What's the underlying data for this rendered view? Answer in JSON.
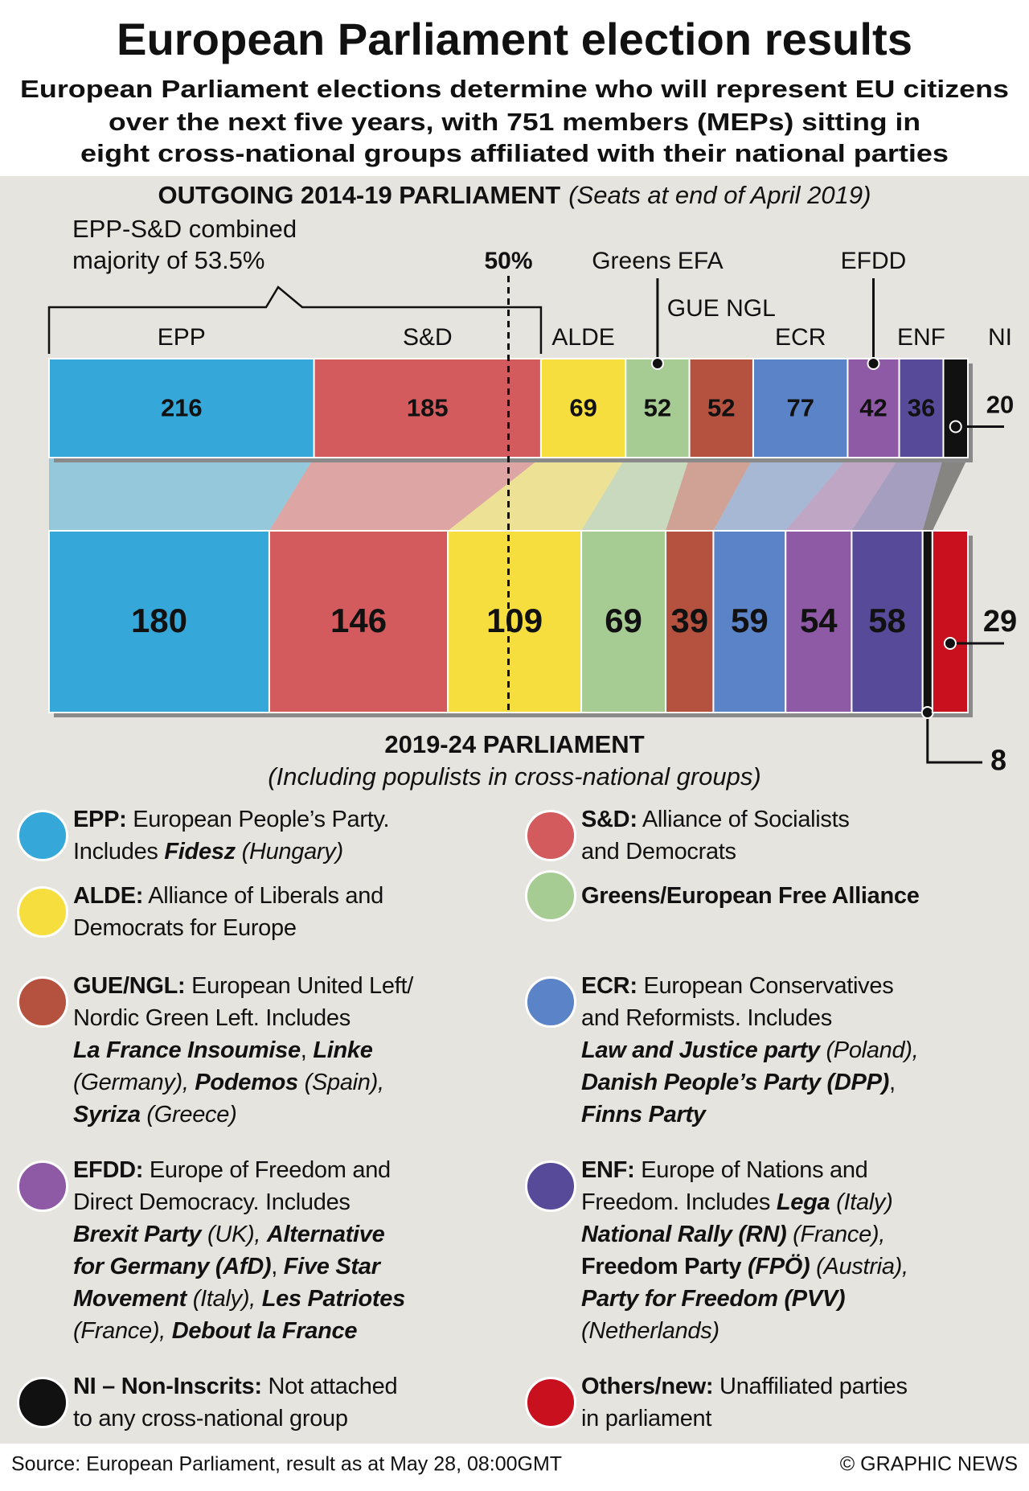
{
  "chart_data": {
    "type": "stacked_bar_comparison",
    "title": "European Parliament election results",
    "subtitle": [
      "European Parliament elections determine who will represent EU citizens",
      "over the next five years, with 751 members (MEPs) sitting in",
      "eight cross-national groups affiliated with their national parties"
    ],
    "annotation": [
      "EPP-S&D combined",
      "majority of 53.5%"
    ],
    "threshold": {
      "value": 50,
      "label": "50%"
    },
    "bars": [
      {
        "title": "OUTGOING 2014-19 PARLIAMENT",
        "note": "(Seats at end of April 2019)",
        "categories": [
          "EPP",
          "S&D",
          "ALDE",
          "Greens EFA",
          "GUE NGL",
          "ECR",
          "EFDD",
          "ENF",
          "NI"
        ],
        "values": [
          216,
          185,
          69,
          52,
          52,
          77,
          42,
          36,
          20
        ],
        "colors": [
          "#35a7d8",
          "#d35b5e",
          "#f6de3e",
          "#a6cc94",
          "#b5513f",
          "#5b83c7",
          "#8e5aa5",
          "#574a98",
          "#111111"
        ]
      },
      {
        "title": "2019-24 PARLIAMENT",
        "note": "(Including populists in cross-national groups)",
        "values": [
          180,
          146,
          109,
          69,
          39,
          59,
          54,
          58,
          8,
          29
        ],
        "colors": [
          "#35a7d8",
          "#d35b5e",
          "#f6de3e",
          "#a6cc94",
          "#b5513f",
          "#5b83c7",
          "#8e5aa5",
          "#574a98",
          "#111111",
          "#c8101e"
        ]
      }
    ]
  },
  "legend": {
    "items": [
      {
        "color": "#35a7d8",
        "lines": [
          [
            {
              "text": "EPP:",
              "style": "b"
            },
            {
              "text": " European People’s Party."
            }
          ],
          [
            {
              "text": "Includes "
            },
            {
              "text": "Fidesz",
              "style": "bi"
            },
            {
              "text": " (Hungary)",
              "style": "i"
            }
          ]
        ]
      },
      {
        "color": "#d35b5e",
        "lines": [
          [
            {
              "text": "S&D:",
              "style": "b"
            },
            {
              "text": " Alliance of Socialists"
            }
          ],
          [
            {
              "text": "and Democrats"
            }
          ]
        ]
      },
      {
        "color": "#f6de3e",
        "lines": [
          [
            {
              "text": "ALDE:",
              "style": "b"
            },
            {
              "text": " Alliance of Liberals and"
            }
          ],
          [
            {
              "text": "Democrats for Europe"
            }
          ]
        ]
      },
      {
        "color": "#a6cc94",
        "lines": [
          [
            {
              "text": "Greens/European Free Alliance",
              "style": "b"
            }
          ]
        ]
      },
      {
        "color": "#b5513f",
        "lines": [
          [
            {
              "text": "GUE/NGL:",
              "style": "b"
            },
            {
              "text": " European United Left/"
            }
          ],
          [
            {
              "text": "Nordic Green Left. Includes"
            }
          ],
          [
            {
              "text": "La France Insoumise",
              "style": "bi"
            },
            {
              "text": ", "
            },
            {
              "text": "Linke",
              "style": "bi"
            }
          ],
          [
            {
              "text": "(Germany), ",
              "style": "i"
            },
            {
              "text": "Podemos",
              "style": "bi"
            },
            {
              "text": " (Spain),",
              "style": "i"
            }
          ],
          [
            {
              "text": "Syriza",
              "style": "bi"
            },
            {
              "text": " (Greece)",
              "style": "i"
            }
          ]
        ]
      },
      {
        "color": "#5b83c7",
        "lines": [
          [
            {
              "text": "ECR:",
              "style": "b"
            },
            {
              "text": " European Conservatives"
            }
          ],
          [
            {
              "text": "and Reformists. Includes"
            }
          ],
          [
            {
              "text": "Law and Justice party",
              "style": "bi"
            },
            {
              "text": " (Poland),",
              "style": "i"
            }
          ],
          [
            {
              "text": "Danish People’s Party (DPP)",
              "style": "bi"
            },
            {
              "text": ","
            }
          ],
          [
            {
              "text": "Finns Party",
              "style": "bi"
            }
          ]
        ]
      },
      {
        "color": "#8e5aa5",
        "lines": [
          [
            {
              "text": "EFDD:",
              "style": "b"
            },
            {
              "text": " Europe of Freedom and"
            }
          ],
          [
            {
              "text": "Direct Democracy. Includes"
            }
          ],
          [
            {
              "text": "Brexit Party",
              "style": "bi"
            },
            {
              "text": " (UK), ",
              "style": "i"
            },
            {
              "text": "Alternative",
              "style": "bi"
            }
          ],
          [
            {
              "text": "for Germany (AfD)",
              "style": "bi"
            },
            {
              "text": ", "
            },
            {
              "text": "Five Star",
              "style": "bi"
            }
          ],
          [
            {
              "text": "Movement",
              "style": "bi"
            },
            {
              "text": " (Italy), ",
              "style": "i"
            },
            {
              "text": "Les Patriotes",
              "style": "bi"
            }
          ],
          [
            {
              "text": "(France), ",
              "style": "i"
            },
            {
              "text": "Debout la France",
              "style": "bi"
            }
          ]
        ]
      },
      {
        "color": "#574a98",
        "lines": [
          [
            {
              "text": "ENF:",
              "style": "b"
            },
            {
              "text": " Europe of Nations and"
            }
          ],
          [
            {
              "text": "Freedom. Includes "
            },
            {
              "text": "Lega",
              "style": "bi"
            },
            {
              "text": " (Italy)",
              "style": "i"
            }
          ],
          [
            {
              "text": "National Rally (RN)",
              "style": "bi"
            },
            {
              "text": " (France),",
              "style": "i"
            }
          ],
          [
            {
              "text": "Freedom Party ",
              "style": "b"
            },
            {
              "text": "(FPÖ)",
              "style": "bi"
            },
            {
              "text": " (Austria),",
              "style": "i"
            }
          ],
          [
            {
              "text": "Party for Freedom (PVV)",
              "style": "bi"
            }
          ],
          [
            {
              "text": "(Netherlands)",
              "style": "i"
            }
          ]
        ]
      },
      {
        "color": "#111111",
        "lines": [
          [
            {
              "text": "NI – Non-Inscrits:",
              "style": "b"
            },
            {
              "text": " Not attached"
            }
          ],
          [
            {
              "text": "to any cross-national group"
            }
          ]
        ]
      },
      {
        "color": "#c8101e",
        "lines": [
          [
            {
              "text": "Others/new:",
              "style": "b"
            },
            {
              "text": " Unaffiliated parties"
            }
          ],
          [
            {
              "text": "in parliament"
            }
          ]
        ]
      }
    ]
  },
  "footer": {
    "source": "Source: European Parliament, result as at May 28, 08:00GMT",
    "credit": "© GRAPHIC NEWS"
  }
}
